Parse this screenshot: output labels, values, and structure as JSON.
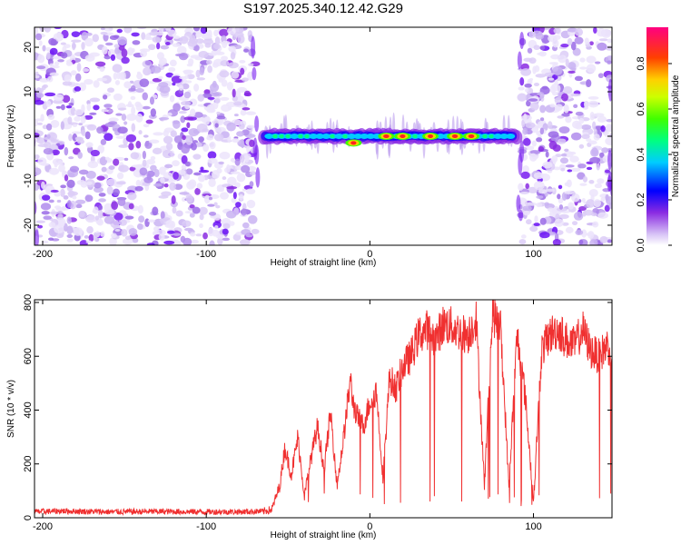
{
  "title": "S197.2025.340.12.42.G29",
  "chart_data": [
    {
      "type": "heatmap",
      "xlabel": "Height of straight line (km)",
      "ylabel": "Frequency (Hz)",
      "xlim": [
        -205,
        148
      ],
      "ylim": [
        -24.5,
        24.5
      ],
      "x_ticks": [
        -200,
        -100,
        0,
        100
      ],
      "y_ticks": [
        -20,
        -10,
        0,
        10,
        20
      ],
      "colorbar": {
        "label": "Normalized spectral amplitude",
        "range": [
          0,
          0.96
        ],
        "ticks": [
          0.0,
          0.2,
          0.4,
          0.6,
          0.8
        ]
      },
      "regions": [
        {
          "name": "noise",
          "x": [
            -205,
            -70
          ]
        },
        {
          "name": "signal-band",
          "x": [
            -65,
            90
          ],
          "frequency_hz": 0
        },
        {
          "name": "noise",
          "x": [
            92,
            148
          ]
        }
      ],
      "peaks": [
        {
          "x": -10,
          "y": -1.5,
          "value": 0.9
        },
        {
          "x": 10,
          "y": 0,
          "value": 0.93
        },
        {
          "x": 20,
          "y": 0,
          "value": 0.9
        },
        {
          "x": 37,
          "y": 0,
          "value": 0.85
        },
        {
          "x": 52,
          "y": 0,
          "value": 0.9
        },
        {
          "x": 62,
          "y": 0,
          "value": 0.95
        }
      ]
    },
    {
      "type": "line",
      "xlabel": "Height of straight line (km)",
      "ylabel": "SNR (10 * v/v)",
      "xlim": [
        -205,
        148
      ],
      "ylim": [
        0,
        810
      ],
      "x_ticks": [
        -200,
        -100,
        0,
        100
      ],
      "y_ticks": [
        0,
        200,
        400,
        600,
        800
      ],
      "series": [
        {
          "name": "SNR",
          "color": "#f03030",
          "x": [
            -205,
            -190,
            -160,
            -130,
            -100,
            -80,
            -65,
            -60,
            -55,
            -52,
            -48,
            -44,
            -40,
            -36,
            -32,
            -28,
            -24,
            -20,
            -16,
            -12,
            -10,
            -8,
            -4,
            0,
            4,
            8,
            12,
            16,
            20,
            25,
            30,
            35,
            40,
            45,
            50,
            55,
            60,
            65,
            70,
            75,
            80,
            85,
            90,
            95,
            100,
            105,
            110,
            115,
            120,
            125,
            130,
            135,
            140,
            145,
            148
          ],
          "values": [
            22,
            25,
            22,
            23,
            22,
            22,
            24,
            30,
            120,
            260,
            160,
            300,
            80,
            220,
            340,
            180,
            390,
            120,
            300,
            510,
            420,
            380,
            340,
            430,
            470,
            150,
            520,
            480,
            560,
            600,
            680,
            700,
            660,
            720,
            710,
            690,
            680,
            740,
            120,
            760,
            700,
            120,
            680,
            450,
            60,
            620,
            680,
            700,
            660,
            640,
            700,
            620,
            600,
            640,
            620
          ]
        }
      ]
    }
  ]
}
